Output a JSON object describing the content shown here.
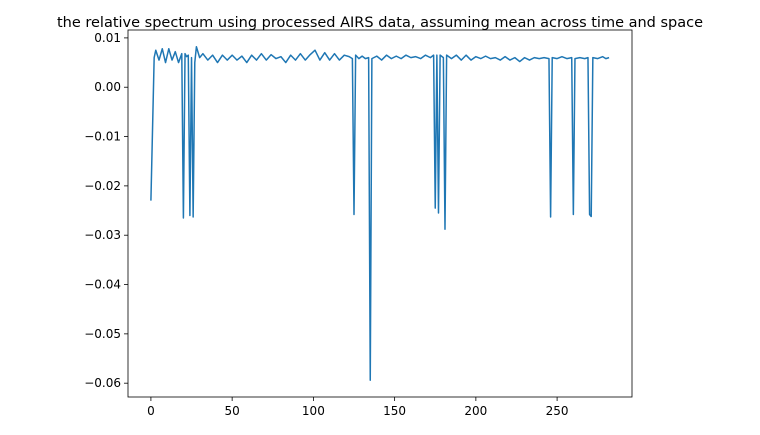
{
  "chart_data": {
    "type": "line",
    "title": "the relative spectrum using processed AIRS data, assuming mean across time and space",
    "color": "#1f77b4",
    "x": [
      0,
      2,
      3,
      5,
      7,
      9,
      11,
      13,
      15,
      17,
      19,
      20,
      21,
      22,
      23,
      24,
      25,
      26,
      27,
      28,
      30,
      32,
      35,
      38,
      41,
      44,
      47,
      50,
      53,
      56,
      59,
      62,
      65,
      68,
      71,
      74,
      77,
      80,
      83,
      86,
      89,
      92,
      95,
      98,
      101,
      104,
      107,
      110,
      113,
      116,
      119,
      122,
      124,
      125,
      126,
      128,
      130,
      132,
      134,
      135,
      136,
      139,
      142,
      145,
      148,
      151,
      154,
      157,
      160,
      163,
      166,
      169,
      172,
      174,
      175,
      176,
      177,
      178,
      180,
      181,
      182,
      185,
      188,
      191,
      194,
      197,
      200,
      203,
      206,
      209,
      212,
      215,
      218,
      221,
      224,
      227,
      230,
      233,
      236,
      239,
      242,
      245,
      246,
      247,
      250,
      253,
      256,
      259,
      260,
      261,
      264,
      267,
      269,
      270,
      271,
      272,
      275,
      278,
      280,
      282
    ],
    "values": [
      -0.023,
      0.006,
      0.0075,
      0.0055,
      0.0078,
      0.005,
      0.0078,
      0.0055,
      0.0072,
      0.005,
      0.0068,
      -0.0265,
      0.0068,
      0.0062,
      0.0065,
      -0.026,
      0.006,
      -0.0263,
      0.005,
      0.0082,
      0.006,
      0.0068,
      0.0055,
      0.0065,
      0.005,
      0.0065,
      0.0055,
      0.0065,
      0.0055,
      0.0063,
      0.005,
      0.0065,
      0.0055,
      0.0068,
      0.0055,
      0.0066,
      0.0058,
      0.0062,
      0.005,
      0.0065,
      0.0055,
      0.0068,
      0.0055,
      0.0066,
      0.0075,
      0.0055,
      0.007,
      0.0055,
      0.0068,
      0.0055,
      0.0065,
      0.0062,
      0.0058,
      -0.0258,
      0.0065,
      0.0058,
      0.0063,
      0.0058,
      0.006,
      -0.0594,
      0.0058,
      0.0063,
      0.0055,
      0.0065,
      0.0058,
      0.0063,
      0.0058,
      0.0065,
      0.006,
      0.0062,
      0.0058,
      0.0065,
      0.006,
      0.0065,
      -0.0245,
      0.0065,
      -0.0255,
      0.0065,
      0.006,
      -0.0288,
      0.0065,
      0.0058,
      0.0065,
      0.0055,
      0.0065,
      0.0055,
      0.0062,
      0.0058,
      0.0063,
      0.0058,
      0.006,
      0.0055,
      0.0062,
      0.0055,
      0.006,
      0.0052,
      0.006,
      0.0055,
      0.006,
      0.0058,
      0.006,
      0.0058,
      -0.0263,
      0.006,
      0.0058,
      0.0062,
      0.0058,
      0.006,
      -0.0258,
      0.0058,
      0.006,
      0.0058,
      0.006,
      -0.0258,
      -0.0262,
      0.006,
      0.0058,
      0.0062,
      0.0058,
      0.006
    ],
    "xlim": [
      -14.1,
      296.1
    ],
    "ylim": [
      -0.0628,
      0.0116
    ],
    "xticks": [
      0,
      50,
      100,
      150,
      200,
      250
    ],
    "yticks": [
      0.01,
      {
        "value": 0,
        "label": "0.00"
      },
      {
        "value": -0.01,
        "label": "−0.01"
      },
      {
        "value": -0.02,
        "label": "−0.02"
      },
      {
        "value": -0.03,
        "label": "−0.03"
      },
      {
        "value": -0.04,
        "label": "−0.04"
      },
      {
        "value": -0.05,
        "label": "−0.05"
      },
      {
        "value": -0.06,
        "label": "−0.06"
      }
    ]
  }
}
